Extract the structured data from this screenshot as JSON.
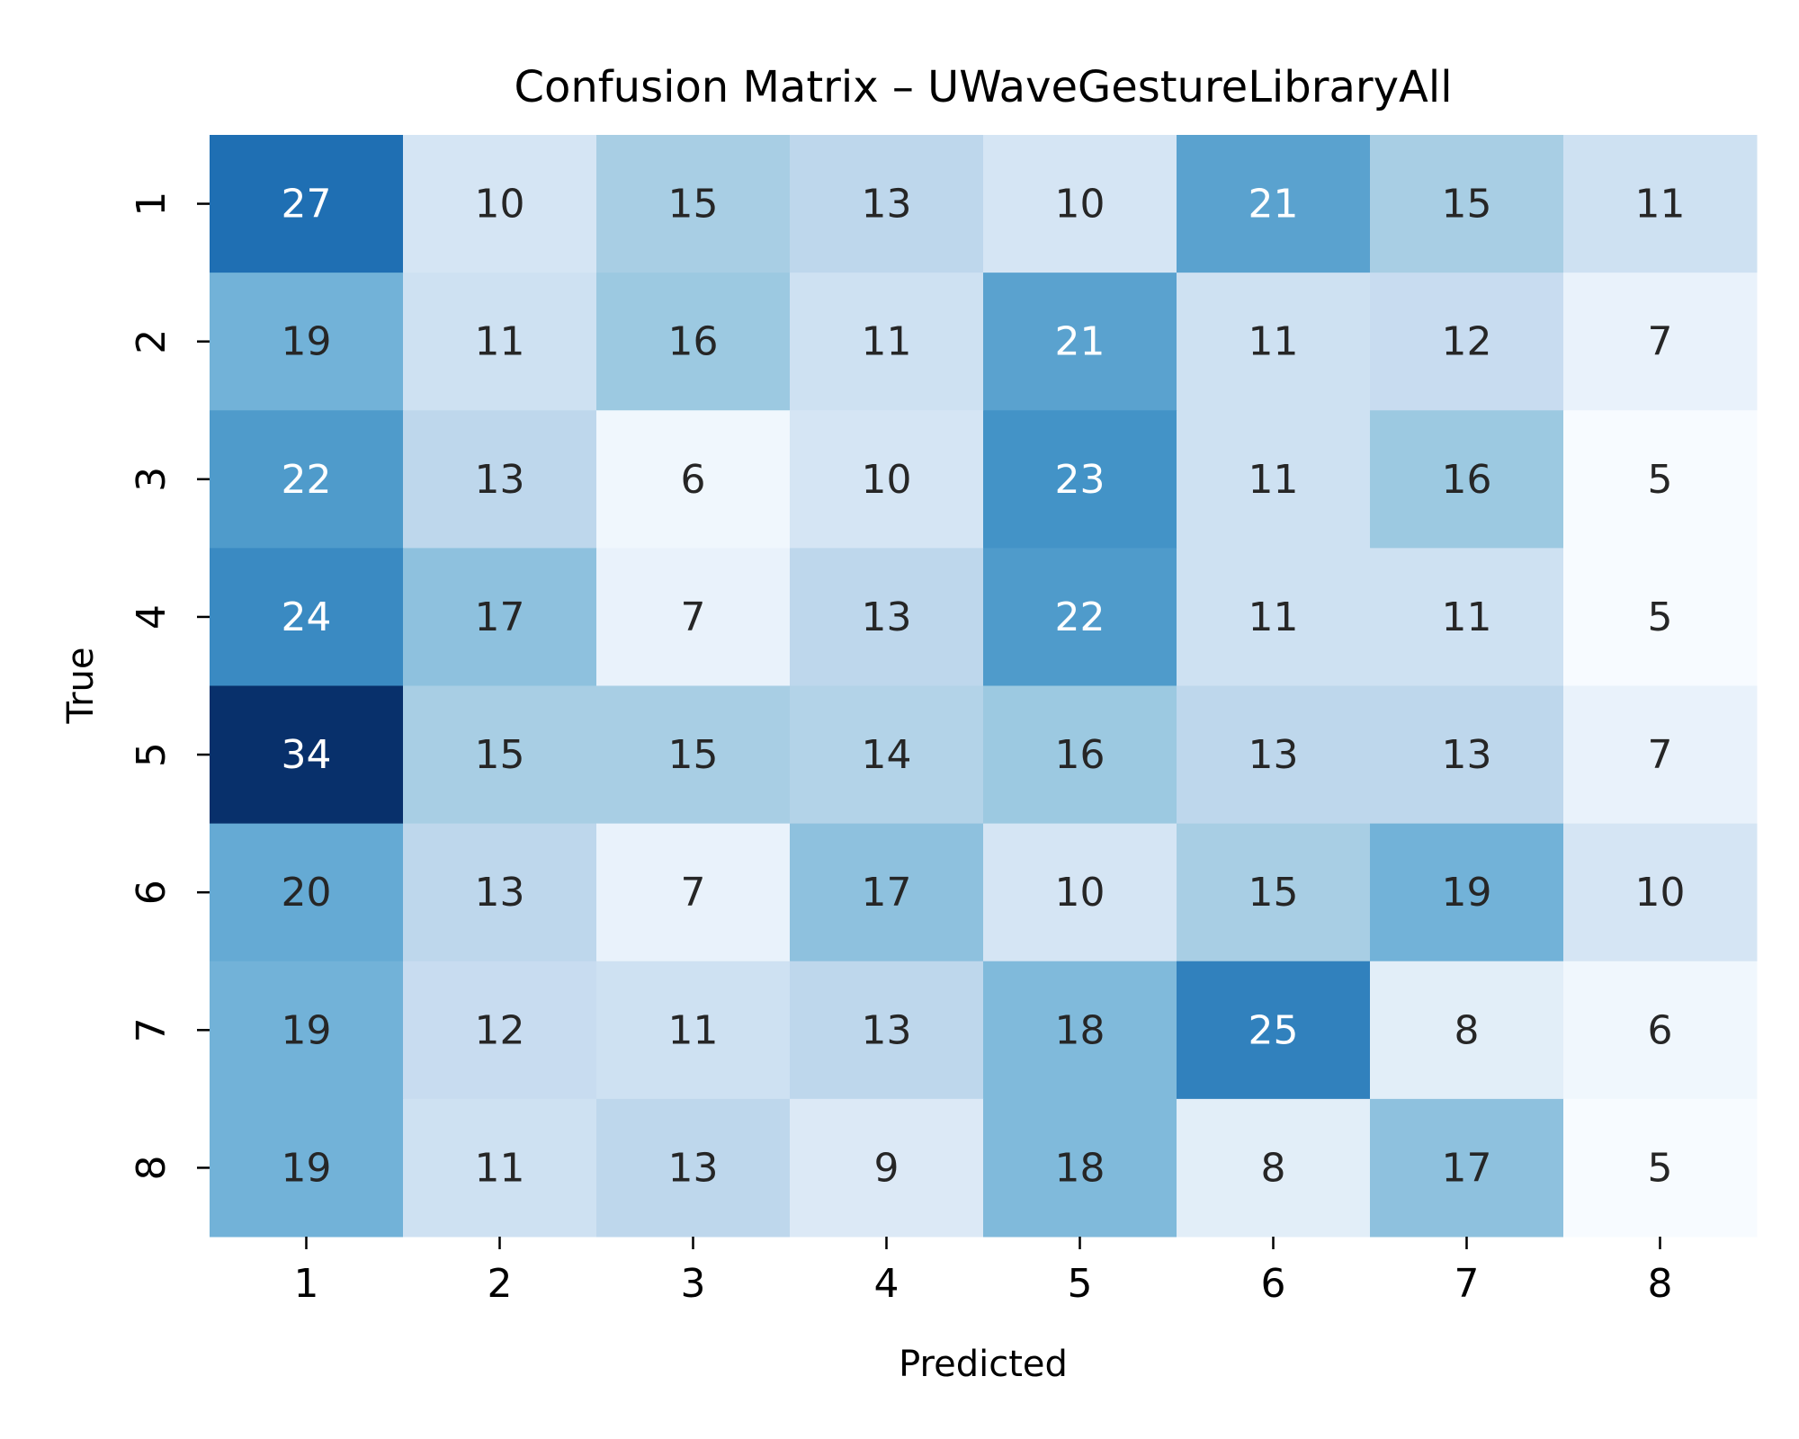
{
  "chart_data": {
    "type": "heatmap",
    "title": "Confusion Matrix – UWaveGestureLibraryAll",
    "xlabel": "Predicted",
    "ylabel": "True",
    "x_categories": [
      "1",
      "2",
      "3",
      "4",
      "5",
      "6",
      "7",
      "8"
    ],
    "y_categories": [
      "1",
      "2",
      "3",
      "4",
      "5",
      "6",
      "7",
      "8"
    ],
    "matrix": [
      [
        27,
        10,
        15,
        13,
        10,
        21,
        15,
        11
      ],
      [
        19,
        11,
        16,
        11,
        21,
        11,
        12,
        7
      ],
      [
        22,
        13,
        6,
        10,
        23,
        11,
        16,
        5
      ],
      [
        24,
        17,
        7,
        13,
        22,
        11,
        11,
        5
      ],
      [
        34,
        15,
        15,
        14,
        16,
        13,
        13,
        7
      ],
      [
        20,
        13,
        7,
        17,
        10,
        15,
        19,
        10
      ],
      [
        19,
        12,
        11,
        13,
        18,
        25,
        8,
        6
      ],
      [
        19,
        11,
        13,
        9,
        18,
        8,
        17,
        5
      ]
    ],
    "colormap": "Blues",
    "value_range": [
      5,
      34
    ],
    "colorbar": false,
    "grid": false
  }
}
